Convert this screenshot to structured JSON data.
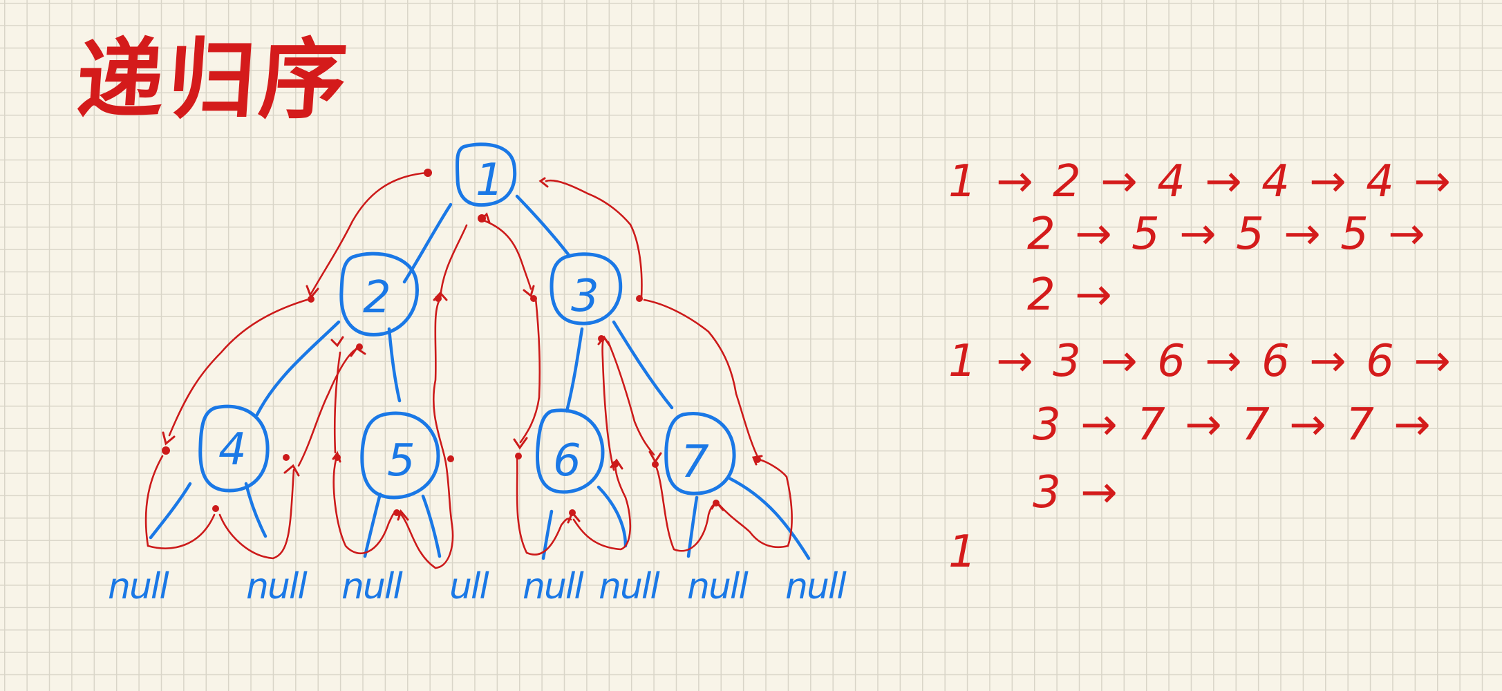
{
  "title": "递归序",
  "tree": {
    "nodes": [
      {
        "id": "1"
      },
      {
        "id": "2"
      },
      {
        "id": "3"
      },
      {
        "id": "4"
      },
      {
        "id": "5"
      },
      {
        "id": "6"
      },
      {
        "id": "7"
      }
    ],
    "null_label": "null",
    "null_label_short": "ull"
  },
  "sequence": {
    "lines": [
      "1 → 2 → 4 → 4 → 4 →",
      "2 → 5 → 5 → 5 →",
      "2 →",
      "1 → 3 → 6 → 6 → 6 →",
      "3 → 7 → 7 → 7 →",
      "3 →",
      "1"
    ]
  },
  "colors": {
    "tree": "#1a78e6",
    "trace": "#cc1a1a",
    "paper": "#f8f4e8",
    "grid": "#d9d5c8"
  }
}
